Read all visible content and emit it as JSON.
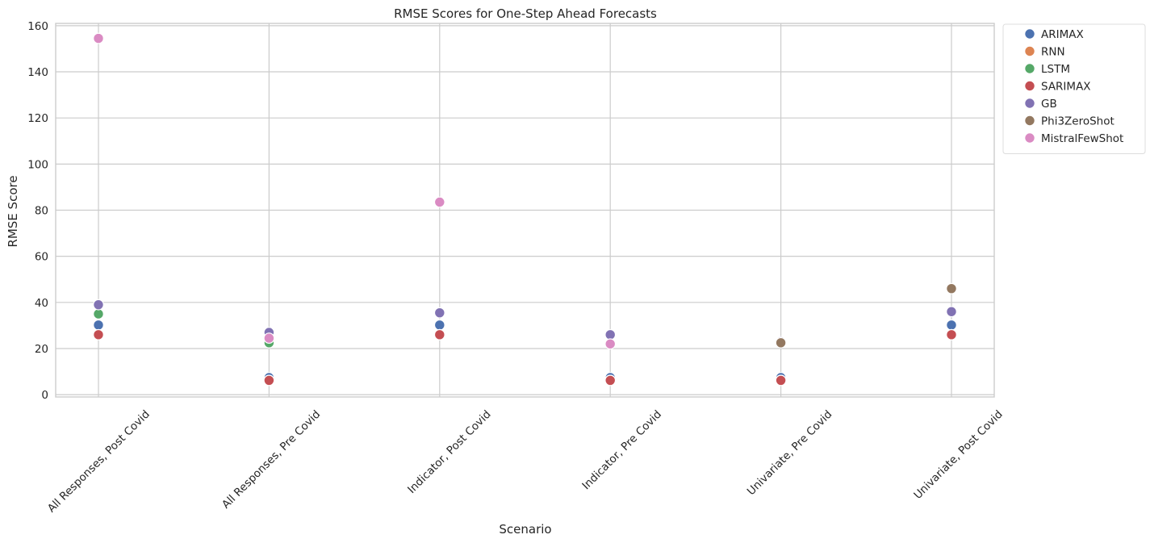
{
  "chart_data": {
    "type": "scatter",
    "title": "RMSE Scores for One-Step Ahead Forecasts",
    "xlabel": "Scenario",
    "ylabel": "RMSE Score",
    "categories": [
      "All Responses, Post Covid",
      "All Responses, Pre Covid",
      "Indicator, Post Covid",
      "Indicator, Pre Covid",
      "Univariate, Pre Covid",
      "Univariate, Post Covid"
    ],
    "ylim": [
      -1,
      161
    ],
    "yticks": [
      0,
      20,
      40,
      60,
      80,
      100,
      120,
      140,
      160
    ],
    "grid": true,
    "legend_position": "outside-top-right",
    "series": [
      {
        "name": "ARIMAX",
        "color": "#4c72b0",
        "values": [
          30.2,
          7.4,
          30.2,
          7.4,
          7.4,
          30.2
        ]
      },
      {
        "name": "RNN",
        "color": "#dd8452",
        "values": [
          26.0,
          6.2,
          26.0,
          6.2,
          6.2,
          26.0
        ]
      },
      {
        "name": "LSTM",
        "color": "#55a868",
        "values": [
          35.0,
          22.5,
          26.0,
          6.2,
          6.2,
          26.0
        ]
      },
      {
        "name": "SARIMAX",
        "color": "#c44e52",
        "values": [
          26.0,
          6.2,
          26.0,
          6.2,
          6.2,
          26.0
        ]
      },
      {
        "name": "GB",
        "color": "#8172b3",
        "values": [
          39.0,
          27.0,
          35.5,
          26.0,
          23.0,
          36.0
        ]
      },
      {
        "name": "Phi3ZeroShot",
        "color": "#937860",
        "values": [
          null,
          null,
          null,
          null,
          22.5,
          46.0
        ]
      },
      {
        "name": "MistralFewShot",
        "color": "#da8bc3",
        "values": [
          154.5,
          24.5,
          83.5,
          22.0,
          null,
          null
        ]
      }
    ]
  }
}
